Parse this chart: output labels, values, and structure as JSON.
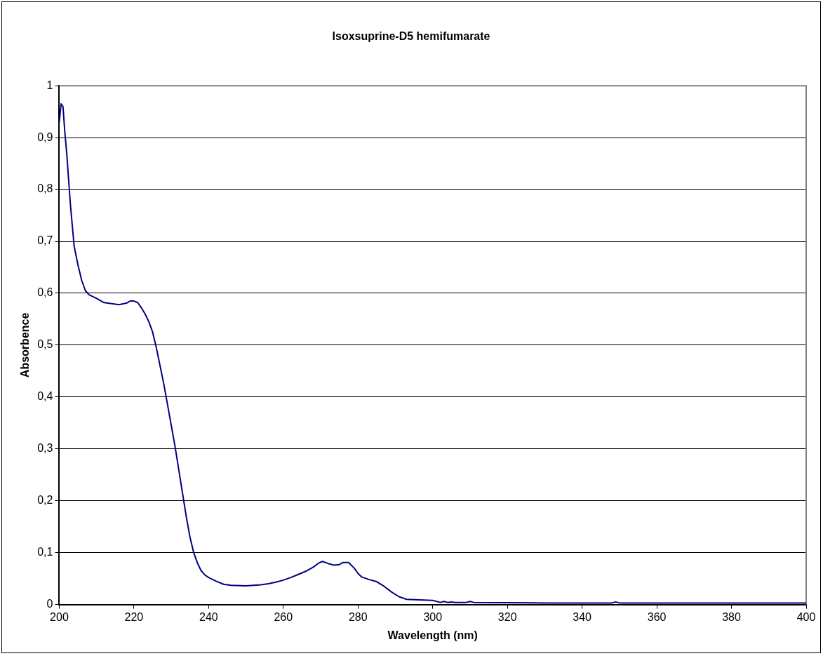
{
  "chart_data": {
    "type": "line",
    "title": "Isoxsuprine-D5 hemifumarate",
    "xlabel": "Wavelength (nm)",
    "ylabel": "Absorbence",
    "xlim": [
      200,
      400
    ],
    "xticks": [
      200,
      220,
      240,
      260,
      280,
      300,
      320,
      340,
      360,
      380,
      400
    ],
    "ylim": [
      0,
      1
    ],
    "yticks": [
      0,
      {
        "value": 0.1,
        "label": "0,1"
      },
      {
        "value": 0.2,
        "label": "0,2"
      },
      {
        "value": 0.3,
        "label": "0,3"
      },
      {
        "value": 0.4,
        "label": "0,4"
      },
      {
        "value": 0.5,
        "label": "0,5"
      },
      {
        "value": 0.6,
        "label": "0,6"
      },
      {
        "value": 0.7,
        "label": "0,7"
      },
      {
        "value": 0.8,
        "label": "0,8"
      },
      {
        "value": 0.9,
        "label": "0,9"
      },
      1
    ],
    "grid": "y",
    "legend": false,
    "marker": "none",
    "line_style": "solid",
    "series": [
      {
        "color": "#000080",
        "x": [
          200,
          200.5,
          201,
          201.5,
          202,
          202.5,
          203,
          203.5,
          204,
          205,
          206,
          207,
          208,
          210,
          212,
          214,
          216,
          218,
          219,
          220,
          221,
          222,
          223,
          224,
          225,
          226,
          227,
          228,
          229,
          230,
          231,
          232,
          233,
          234,
          235,
          236,
          237,
          238,
          239,
          240,
          242,
          244,
          246,
          250,
          254,
          256,
          258,
          260,
          262,
          264,
          266,
          268,
          269.5,
          270.5,
          272,
          273.5,
          275,
          276,
          277.5,
          279,
          280,
          281,
          283,
          285,
          287,
          289,
          291,
          293,
          300,
          302,
          303,
          304,
          305,
          306,
          309,
          310,
          311,
          330,
          348,
          349,
          350,
          400
        ],
        "values": [
          0.93,
          0.965,
          0.96,
          0.91,
          0.87,
          0.82,
          0.77,
          0.73,
          0.69,
          0.655,
          0.625,
          0.605,
          0.597,
          0.59,
          0.582,
          0.58,
          0.578,
          0.581,
          0.585,
          0.585,
          0.582,
          0.572,
          0.56,
          0.545,
          0.525,
          0.495,
          0.46,
          0.425,
          0.385,
          0.345,
          0.305,
          0.26,
          0.215,
          0.17,
          0.13,
          0.1,
          0.08,
          0.065,
          0.057,
          0.052,
          0.045,
          0.039,
          0.037,
          0.036,
          0.038,
          0.04,
          0.043,
          0.047,
          0.052,
          0.058,
          0.064,
          0.072,
          0.08,
          0.083,
          0.079,
          0.076,
          0.077,
          0.081,
          0.081,
          0.07,
          0.06,
          0.053,
          0.048,
          0.044,
          0.035,
          0.024,
          0.015,
          0.01,
          0.008,
          0.004,
          0.006,
          0.004,
          0.005,
          0.004,
          0.004,
          0.006,
          0.004,
          0.003,
          0.003,
          0.005,
          0.003,
          0.003
        ]
      }
    ]
  }
}
